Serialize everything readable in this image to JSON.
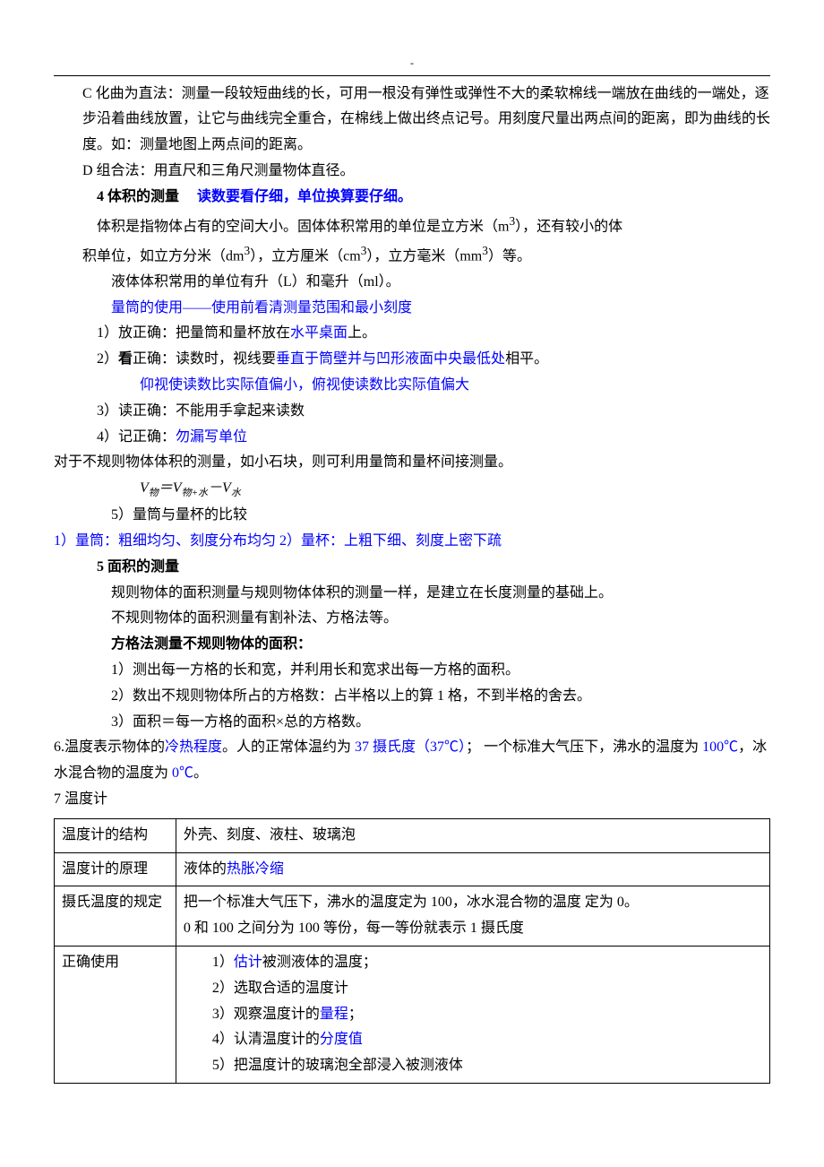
{
  "colors": {
    "text": "#000000",
    "highlight": "#0000ff",
    "border": "#000000",
    "background": "#ffffff"
  },
  "header_dash": "-",
  "body": {
    "para_c": "C 化曲为直法：测量一段较短曲线的长，可用一根没有弹性或弹性不大的柔软棉线一端放在曲线的一端处，逐步沿着曲线放置，让它与曲线完全重合，在棉线上做出终点记号。用刻度尺量出两点间的距离，即为曲线的长度。如：测量地图上两点间的距离。",
    "para_d": "D 组合法：用直尺和三角尺测量物体直径。",
    "sec4_title_a": "4 体积的测量",
    "sec4_title_b": "读数要看仔细，单位换算要仔细。",
    "sec4_p1a": "体积是指物体占有的空间大小。固体体积常用的单位是立方米（m",
    "sec4_p1b": "），还有较小的体",
    "sec4_p2a": "积单位，如立方分米（dm",
    "sec4_p2b": "），立方厘米（cm",
    "sec4_p2c": "），立方毫米（mm",
    "sec4_p2d": "）等。",
    "sec4_p3": "液体体积常用的单位有升（L）和毫升（ml）。",
    "sec4_p4a": "量筒的使用——使用前看清",
    "sec4_p4b": "测量范围",
    "sec4_p4c": "和",
    "sec4_p4d": "最小刻度",
    "sec4_li1a": "1）放正确：把量筒和量杯放在",
    "sec4_li1b": "水平桌面",
    "sec4_li1c": "上。",
    "sec4_li2a": "2）",
    "sec4_li2b": "看",
    "sec4_li2c": "正确：读数时，视线要",
    "sec4_li2d": "垂直于筒壁并与凹形液面中央最低处",
    "sec4_li2e": "相平。",
    "sec4_li2_sub": "仰视使读数比实际值偏小，俯视使读数比实际值偏大",
    "sec4_li3": "3）读正确：不能用手拿起来读数",
    "sec4_li4a": "4）记正确：",
    "sec4_li4b": "勿漏写单位",
    "sec4_p5": "对于不规则物体体积的测量，如小石块，则可利用量筒和量杯间接测量。",
    "sec4_li5": "5）量筒与量杯的比较",
    "compare_line": "1）量筒：粗细均匀、刻度分布均匀   2）量杯：上粗下细、刻度上密下疏",
    "sec5_title": "5 面积的测量",
    "sec5_p1": "规则物体的面积测量与规则物体体积的测量一样，是建立在长度测量的基础上。",
    "sec5_p2": "不规则物体的面积测量有割补法、方格法等。",
    "sec5_sub": "方格法测量不规则物体的面积：",
    "sec5_li1": "1）测出每一方格的长和宽，并利用长和宽求出每一方格的面积。",
    "sec5_li2": "2）数出不规则物体所占的方格数：占半格以上的算 1 格，不到半格的舍去。",
    "sec5_li3": "3）面积＝每一方格的面积×总的方格数。",
    "sec6a": "6.温度表示物体的",
    "sec6b": "冷热程度",
    "sec6c": "。人的正常体温约为 ",
    "sec6d": "37 摄氏度（37℃）",
    "sec6e": "；  一个标准大气压下，沸水的温度为 ",
    "sec6f": "100℃",
    "sec6g": "，冰水混合物的温度为 ",
    "sec6h": "0℃",
    "sec6i": "。",
    "sec7_title": "7  温度计",
    "table": {
      "r1c1": "温度计的结构",
      "r1c2": "外壳、刻度、液柱、玻璃泡",
      "r2c1": "温度计的原理",
      "r2c2a": "液体的",
      "r2c2b": "热胀冷缩",
      "r3c1": "摄氏温度的规定",
      "r3c2a": "把一个标准大气压下，沸水的温度定为 100，冰水混合物的温度  定为 0。",
      "r3c2b": "0 和 100 之间分为 100 等份，每一等份就表示 1 摄氏度",
      "r4c1": "正确使用",
      "r4_li1a": "1）",
      "r4_li1b": "估计",
      "r4_li1c": "被测液体的温度；",
      "r4_li2": "2）选取合适的温度计",
      "r4_li3a": "3）观察温度计的",
      "r4_li3b": "量程",
      "r4_li3c": "；",
      "r4_li4a": "4）认清温度计的",
      "r4_li4b": "分度值",
      "r4_li5": "5）把温度计的玻璃泡全部浸入被测液体"
    }
  },
  "formula": {
    "v": "V",
    "s1": "物",
    "eq": "＝",
    "s2": "物+水",
    "minus": "－",
    "s3": "水"
  }
}
